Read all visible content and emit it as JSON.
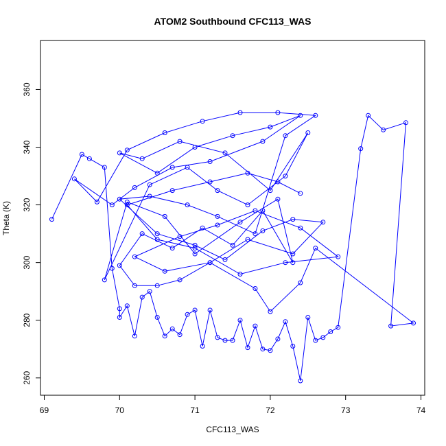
{
  "chart_data": {
    "type": "scatter",
    "title": "ATOM2 Southbound CFC113_WAS",
    "xlabel": "CFC113_WAS",
    "ylabel": "Theta (K)",
    "xlim": [
      68.95,
      74.05
    ],
    "ylim": [
      254,
      377
    ],
    "xticks": [
      69,
      70,
      71,
      72,
      73,
      74
    ],
    "yticks": [
      260,
      280,
      300,
      320,
      340,
      360
    ],
    "grid": false,
    "point_style": "open-circle-connected",
    "color": "#0000ff",
    "series": [
      {
        "x": [
          69.1,
          69.5,
          69.6,
          69.8,
          69.9,
          70.0,
          70.0,
          70.1,
          70.2,
          70.3,
          70.4,
          70.5,
          70.6,
          70.7,
          70.8,
          70.9,
          71.0,
          71.1,
          71.2,
          71.3,
          71.4,
          71.5,
          71.6,
          71.7,
          71.8,
          71.9,
          72.0,
          72.1,
          72.2,
          72.3,
          72.4,
          72.5,
          72.6,
          72.7,
          72.8,
          72.9,
          73.2,
          73.3,
          73.5,
          73.8,
          73.6,
          73.9,
          72.6,
          72.4,
          72.0,
          71.8,
          71.2,
          70.8,
          70.5,
          70.2,
          70.0,
          70.3,
          70.7,
          71.1,
          71.5,
          71.9,
          72.3,
          72.1,
          71.6,
          71.0,
          70.6,
          70.1,
          69.8,
          70.4,
          70.9,
          71.3,
          71.7,
          72.2,
          72.5,
          72.0,
          71.4,
          70.8,
          70.3,
          70.0,
          70.5,
          71.0,
          71.5,
          72.0,
          72.4,
          71.9,
          71.2,
          70.7,
          70.2,
          69.9,
          69.4,
          69.7,
          70.1,
          70.6,
          71.1,
          71.6,
          72.1,
          72.6,
          72.2,
          71.8,
          71.3,
          70.9,
          70.4,
          70.0,
          70.5,
          71.0,
          71.4,
          71.9,
          72.3,
          72.7,
          72.3,
          71.7,
          71.2,
          70.6,
          70.2,
          70.8,
          71.3,
          71.8,
          72.4,
          72.9,
          72.2,
          71.6,
          71.0,
          70.5,
          70.1,
          70.7,
          71.2,
          71.7,
          72.1,
          72.4
        ],
        "y": [
          315,
          337.5,
          336,
          333,
          298,
          284,
          281,
          285,
          274.5,
          288,
          290,
          281,
          274.5,
          277,
          275,
          282,
          283.5,
          271,
          283.5,
          274,
          273,
          273,
          280,
          270.5,
          278,
          270,
          269.5,
          273.5,
          279.5,
          271,
          259,
          281,
          273,
          274,
          276,
          277.5,
          339.5,
          351,
          346,
          348.5,
          278,
          279,
          305,
          293,
          283,
          291,
          300,
          294,
          292,
          292,
          299,
          310,
          305,
          312,
          306,
          318,
          300,
          322,
          314,
          303,
          316,
          321,
          294,
          327,
          333,
          325,
          320,
          330,
          345,
          325,
          338,
          342,
          336,
          338,
          331,
          340,
          344,
          347,
          351,
          342,
          335,
          333,
          326,
          320,
          329,
          321,
          339,
          345,
          349,
          352,
          352,
          351,
          344,
          310,
          316,
          320,
          323,
          322,
          310,
          306,
          301,
          311,
          315,
          314,
          303,
          308,
          300,
          297,
          302,
          309,
          313,
          318,
          312,
          302,
          300,
          296,
          305,
          308,
          320,
          325,
          328,
          331,
          328,
          324
        ]
      }
    ]
  }
}
